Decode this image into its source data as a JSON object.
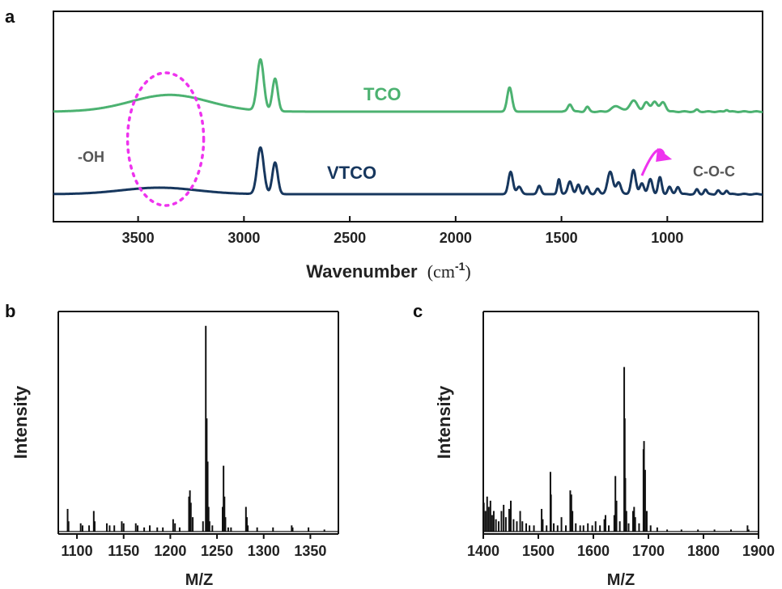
{
  "chart_data": [
    {
      "panel": "a",
      "type": "line",
      "xlabel": "Wavenumber",
      "xlabel_unit": "(cm",
      "xlabel_sup": "-1",
      "xlabel_close": ")",
      "xlim": [
        3900,
        550
      ],
      "x_reversed": true,
      "xticks": [
        3500,
        3000,
        2500,
        2000,
        1500,
        1000
      ],
      "ylabel": "",
      "series": [
        {
          "name": "TCO",
          "color": "#4cb271",
          "baseline": 0.62,
          "peaks": [
            {
              "x": 3350,
              "h": 0.18,
              "w": 260
            },
            {
              "x": 2922,
              "h": 0.55,
              "w": 22
            },
            {
              "x": 2853,
              "h": 0.35,
              "w": 18
            },
            {
              "x": 1745,
              "h": 0.26,
              "w": 16
            },
            {
              "x": 1460,
              "h": 0.08,
              "w": 14
            },
            {
              "x": 1378,
              "h": 0.05,
              "w": 12
            },
            {
              "x": 1240,
              "h": 0.06,
              "w": 30
            },
            {
              "x": 1160,
              "h": 0.12,
              "w": 25
            },
            {
              "x": 1100,
              "h": 0.1,
              "w": 18
            },
            {
              "x": 1060,
              "h": 0.11,
              "w": 18
            },
            {
              "x": 1020,
              "h": 0.1,
              "w": 18
            },
            {
              "x": 860,
              "h": 0.02,
              "w": 10
            },
            {
              "x": 720,
              "h": 0.02,
              "w": 10
            }
          ]
        },
        {
          "name": "VTCO",
          "color": "#17375e",
          "baseline": 0.0,
          "peaks": [
            {
              "x": 3400,
              "h": 0.07,
              "w": 250
            },
            {
              "x": 2922,
              "h": 0.5,
              "w": 22
            },
            {
              "x": 2853,
              "h": 0.34,
              "w": 18
            },
            {
              "x": 1740,
              "h": 0.24,
              "w": 15
            },
            {
              "x": 1700,
              "h": 0.08,
              "w": 15
            },
            {
              "x": 1605,
              "h": 0.09,
              "w": 12
            },
            {
              "x": 1512,
              "h": 0.16,
              "w": 10
            },
            {
              "x": 1460,
              "h": 0.14,
              "w": 14
            },
            {
              "x": 1420,
              "h": 0.1,
              "w": 12
            },
            {
              "x": 1380,
              "h": 0.08,
              "w": 12
            },
            {
              "x": 1330,
              "h": 0.06,
              "w": 12
            },
            {
              "x": 1270,
              "h": 0.24,
              "w": 18
            },
            {
              "x": 1230,
              "h": 0.13,
              "w": 15
            },
            {
              "x": 1160,
              "h": 0.26,
              "w": 15
            },
            {
              "x": 1120,
              "h": 0.12,
              "w": 14
            },
            {
              "x": 1080,
              "h": 0.16,
              "w": 14
            },
            {
              "x": 1035,
              "h": 0.18,
              "w": 12
            },
            {
              "x": 990,
              "h": 0.08,
              "w": 12
            },
            {
              "x": 950,
              "h": 0.08,
              "w": 12
            },
            {
              "x": 860,
              "h": 0.05,
              "w": 10
            },
            {
              "x": 820,
              "h": 0.05,
              "w": 10
            },
            {
              "x": 760,
              "h": 0.04,
              "w": 10
            },
            {
              "x": 720,
              "h": 0.04,
              "w": 10
            }
          ]
        }
      ],
      "annotations": {
        "oh_label": "-OH",
        "coc_label": "C-O-C",
        "oh_ellipse_color": "#ee33ee",
        "arrow_color": "#ee33ee",
        "oh_center_x": 3370,
        "arrow_from_x": 1120,
        "arrow_to_x": 970
      }
    },
    {
      "panel": "b",
      "type": "bar",
      "subtype": "stick-spectrum",
      "xlabel": "M/Z",
      "ylabel": "Intensity",
      "xlim": [
        1080,
        1380
      ],
      "xticks": [
        1100,
        1150,
        1200,
        1250,
        1300,
        1350
      ],
      "ylim": [
        0,
        1.05
      ],
      "color": "#111111",
      "peaks": [
        {
          "x": 1090,
          "y": 0.11
        },
        {
          "x": 1091,
          "y": 0.05
        },
        {
          "x": 1104,
          "y": 0.04
        },
        {
          "x": 1106,
          "y": 0.03
        },
        {
          "x": 1113,
          "y": 0.03
        },
        {
          "x": 1118,
          "y": 0.1
        },
        {
          "x": 1119,
          "y": 0.05
        },
        {
          "x": 1132,
          "y": 0.04
        },
        {
          "x": 1135,
          "y": 0.03
        },
        {
          "x": 1140,
          "y": 0.03
        },
        {
          "x": 1148,
          "y": 0.05
        },
        {
          "x": 1150,
          "y": 0.04
        },
        {
          "x": 1163,
          "y": 0.04
        },
        {
          "x": 1165,
          "y": 0.03
        },
        {
          "x": 1172,
          "y": 0.02
        },
        {
          "x": 1178,
          "y": 0.03
        },
        {
          "x": 1186,
          "y": 0.02
        },
        {
          "x": 1192,
          "y": 0.02
        },
        {
          "x": 1203,
          "y": 0.06
        },
        {
          "x": 1205,
          "y": 0.04
        },
        {
          "x": 1210,
          "y": 0.02
        },
        {
          "x": 1220,
          "y": 0.17
        },
        {
          "x": 1221,
          "y": 0.2
        },
        {
          "x": 1222,
          "y": 0.14
        },
        {
          "x": 1224,
          "y": 0.07
        },
        {
          "x": 1235,
          "y": 0.05
        },
        {
          "x": 1238,
          "y": 1.0
        },
        {
          "x": 1239,
          "y": 0.55
        },
        {
          "x": 1240,
          "y": 0.34
        },
        {
          "x": 1241,
          "y": 0.12
        },
        {
          "x": 1242,
          "y": 0.05
        },
        {
          "x": 1245,
          "y": 0.03
        },
        {
          "x": 1256,
          "y": 0.12
        },
        {
          "x": 1257,
          "y": 0.32
        },
        {
          "x": 1258,
          "y": 0.17
        },
        {
          "x": 1259,
          "y": 0.07
        },
        {
          "x": 1262,
          "y": 0.02
        },
        {
          "x": 1265,
          "y": 0.02
        },
        {
          "x": 1281,
          "y": 0.12
        },
        {
          "x": 1282,
          "y": 0.07
        },
        {
          "x": 1283,
          "y": 0.03
        },
        {
          "x": 1293,
          "y": 0.02
        },
        {
          "x": 1310,
          "y": 0.02
        },
        {
          "x": 1330,
          "y": 0.03
        },
        {
          "x": 1331,
          "y": 0.02
        },
        {
          "x": 1348,
          "y": 0.02
        },
        {
          "x": 1365,
          "y": 0.01
        }
      ]
    },
    {
      "panel": "c",
      "type": "bar",
      "subtype": "stick-spectrum",
      "xlabel": "M/Z",
      "ylabel": "Intensity",
      "xlim": [
        1400,
        1900
      ],
      "xticks": [
        1400,
        1500,
        1600,
        1700,
        1800,
        1900
      ],
      "ylim": [
        0,
        1.05
      ],
      "color": "#111111",
      "peaks": [
        {
          "x": 1401,
          "y": 0.14
        },
        {
          "x": 1404,
          "y": 0.1
        },
        {
          "x": 1407,
          "y": 0.17
        },
        {
          "x": 1410,
          "y": 0.12
        },
        {
          "x": 1413,
          "y": 0.15
        },
        {
          "x": 1416,
          "y": 0.08
        },
        {
          "x": 1419,
          "y": 0.1
        },
        {
          "x": 1423,
          "y": 0.06
        },
        {
          "x": 1428,
          "y": 0.05
        },
        {
          "x": 1433,
          "y": 0.1
        },
        {
          "x": 1437,
          "y": 0.13
        },
        {
          "x": 1441,
          "y": 0.07
        },
        {
          "x": 1447,
          "y": 0.11
        },
        {
          "x": 1450,
          "y": 0.15
        },
        {
          "x": 1455,
          "y": 0.06
        },
        {
          "x": 1461,
          "y": 0.05
        },
        {
          "x": 1467,
          "y": 0.1
        },
        {
          "x": 1471,
          "y": 0.05
        },
        {
          "x": 1478,
          "y": 0.04
        },
        {
          "x": 1484,
          "y": 0.03
        },
        {
          "x": 1492,
          "y": 0.03
        },
        {
          "x": 1506,
          "y": 0.11
        },
        {
          "x": 1508,
          "y": 0.06
        },
        {
          "x": 1515,
          "y": 0.03
        },
        {
          "x": 1522,
          "y": 0.29
        },
        {
          "x": 1523,
          "y": 0.18
        },
        {
          "x": 1528,
          "y": 0.04
        },
        {
          "x": 1535,
          "y": 0.03
        },
        {
          "x": 1542,
          "y": 0.07
        },
        {
          "x": 1550,
          "y": 0.03
        },
        {
          "x": 1558,
          "y": 0.2
        },
        {
          "x": 1560,
          "y": 0.18
        },
        {
          "x": 1562,
          "y": 0.1
        },
        {
          "x": 1568,
          "y": 0.04
        },
        {
          "x": 1576,
          "y": 0.03
        },
        {
          "x": 1582,
          "y": 0.03
        },
        {
          "x": 1590,
          "y": 0.04
        },
        {
          "x": 1598,
          "y": 0.03
        },
        {
          "x": 1604,
          "y": 0.05
        },
        {
          "x": 1612,
          "y": 0.03
        },
        {
          "x": 1620,
          "y": 0.06
        },
        {
          "x": 1622,
          "y": 0.08
        },
        {
          "x": 1628,
          "y": 0.03
        },
        {
          "x": 1638,
          "y": 0.08
        },
        {
          "x": 1640,
          "y": 0.27
        },
        {
          "x": 1642,
          "y": 0.15
        },
        {
          "x": 1648,
          "y": 0.05
        },
        {
          "x": 1656,
          "y": 0.8
        },
        {
          "x": 1657,
          "y": 0.55
        },
        {
          "x": 1658,
          "y": 0.26
        },
        {
          "x": 1660,
          "y": 0.1
        },
        {
          "x": 1664,
          "y": 0.04
        },
        {
          "x": 1672,
          "y": 0.1
        },
        {
          "x": 1674,
          "y": 0.12
        },
        {
          "x": 1676,
          "y": 0.07
        },
        {
          "x": 1683,
          "y": 0.04
        },
        {
          "x": 1691,
          "y": 0.4
        },
        {
          "x": 1692,
          "y": 0.44
        },
        {
          "x": 1694,
          "y": 0.3
        },
        {
          "x": 1697,
          "y": 0.1
        },
        {
          "x": 1704,
          "y": 0.03
        },
        {
          "x": 1716,
          "y": 0.02
        },
        {
          "x": 1734,
          "y": 0.01
        },
        {
          "x": 1760,
          "y": 0.01
        },
        {
          "x": 1790,
          "y": 0.01
        },
        {
          "x": 1820,
          "y": 0.01
        },
        {
          "x": 1850,
          "y": 0.01
        },
        {
          "x": 1880,
          "y": 0.03
        },
        {
          "x": 1882,
          "y": 0.01
        }
      ]
    }
  ]
}
